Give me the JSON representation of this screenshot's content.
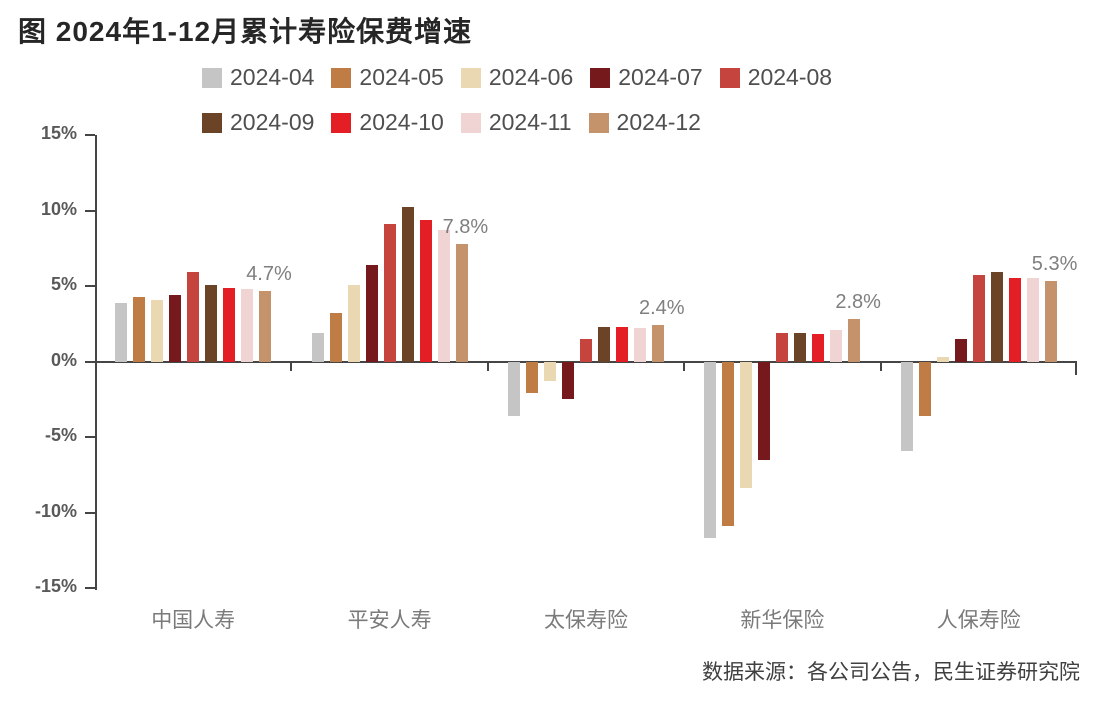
{
  "title": "图  2024年1-12月累计寿险保费增速",
  "source": "数据来源：各公司公告，民生证券研究院",
  "colors": {
    "axis": "#454545",
    "title_text": "#262626",
    "legend_text": "#4f4f4f",
    "axis_label_text": "#595959",
    "category_label_text": "#7a7a7a",
    "data_label_text": "#7f7f7f",
    "background": "#ffffff"
  },
  "chart_data": {
    "type": "bar",
    "title": "图  2024年1-12月累计寿险保费增速",
    "categories": [
      "中国人寿",
      "平安人寿",
      "太保寿险",
      "新华保险",
      "人保寿险"
    ],
    "series": [
      {
        "name": "2024-04",
        "color": "#c5c5c5",
        "values": [
          3.9,
          1.9,
          -3.6,
          -11.7,
          -5.9
        ]
      },
      {
        "name": "2024-05",
        "color": "#c07c45",
        "values": [
          4.3,
          3.2,
          -2.1,
          -10.9,
          -3.6
        ]
      },
      {
        "name": "2024-06",
        "color": "#ead8b2",
        "values": [
          4.1,
          5.1,
          -1.3,
          -8.4,
          0.3
        ]
      },
      {
        "name": "2024-07",
        "color": "#76191c",
        "values": [
          4.4,
          6.4,
          -2.5,
          -6.5,
          1.5
        ]
      },
      {
        "name": "2024-08",
        "color": "#c5443e",
        "values": [
          5.9,
          9.1,
          1.5,
          1.9,
          5.7
        ]
      },
      {
        "name": "2024-09",
        "color": "#6b4327",
        "values": [
          5.1,
          10.2,
          2.3,
          1.9,
          5.9
        ]
      },
      {
        "name": "2024-10",
        "color": "#e41e25",
        "values": [
          4.9,
          9.4,
          2.3,
          1.8,
          5.5
        ]
      },
      {
        "name": "2024-11",
        "color": "#f0d4d3",
        "values": [
          4.8,
          8.7,
          2.2,
          2.1,
          5.5
        ]
      },
      {
        "name": "2024-12",
        "color": "#c4926b",
        "values": [
          4.7,
          7.8,
          2.4,
          2.8,
          5.3
        ]
      }
    ],
    "annotations": [
      "4.7%",
      "7.8%",
      "2.4%",
      "2.8%",
      "5.3%"
    ],
    "ylim": [
      -15,
      15
    ],
    "yticks": [
      "15%",
      "10%",
      "5%",
      "0%",
      "-5%",
      "-10%",
      "-15%"
    ],
    "ylabel": "",
    "xlabel": "",
    "grid": false,
    "legend_position": "top"
  }
}
